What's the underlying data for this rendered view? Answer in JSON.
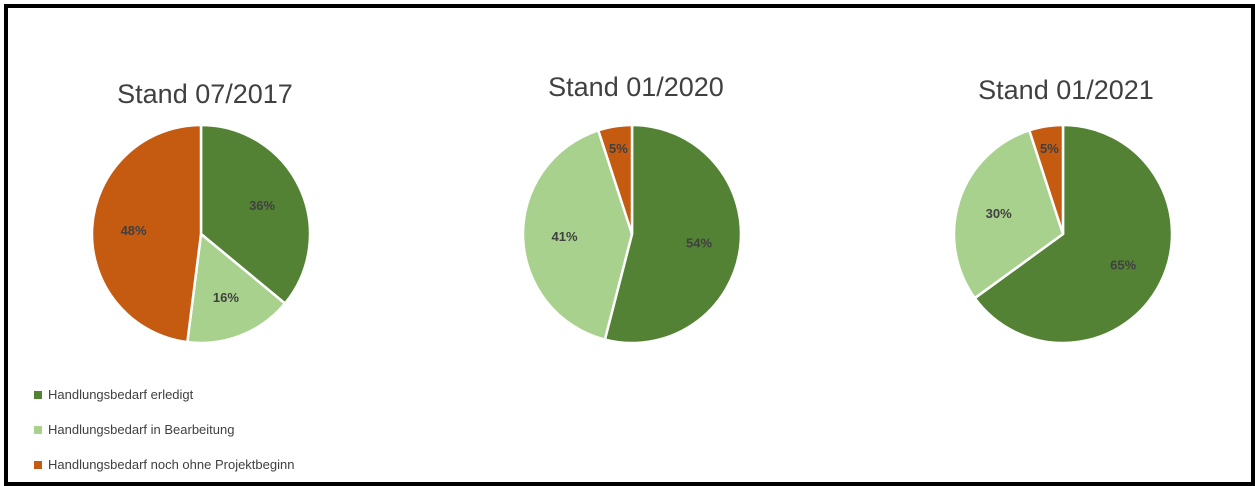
{
  "colors": {
    "erledigt": "#548235",
    "bearbeitung": "#A9D18E",
    "ohne": "#C55A11"
  },
  "legend": [
    {
      "label": "Handlungsbedarf erledigt",
      "color_key": "erledigt"
    },
    {
      "label": "Handlungsbedarf in Bearbeitung",
      "color_key": "bearbeitung"
    },
    {
      "label": "Handlungsbedarf noch ohne Projektbeginn",
      "color_key": "ohne"
    }
  ],
  "chart_data": [
    {
      "type": "pie",
      "title": "Stand 07/2017",
      "categories": [
        "Handlungsbedarf erledigt",
        "Handlungsbedarf in Bearbeitung",
        "Handlungsbedarf noch ohne Projektbeginn"
      ],
      "values": [
        36,
        16,
        48
      ],
      "labels": [
        "36%",
        "16%",
        "48%"
      ],
      "legend_position": "bottom-left"
    },
    {
      "type": "pie",
      "title": "Stand 01/2020",
      "categories": [
        "Handlungsbedarf erledigt",
        "Handlungsbedarf in Bearbeitung",
        "Handlungsbedarf noch ohne Projektbeginn"
      ],
      "values": [
        54,
        41,
        5
      ],
      "labels": [
        "54%",
        "41%",
        "5%"
      ],
      "legend_position": "bottom-left"
    },
    {
      "type": "pie",
      "title": "Stand 01/2021",
      "categories": [
        "Handlungsbedarf erledigt",
        "Handlungsbedarf in Bearbeitung",
        "Handlungsbedarf noch ohne Projektbeginn"
      ],
      "values": [
        65,
        30,
        5
      ],
      "labels": [
        "65%",
        "30%",
        "5%"
      ],
      "legend_position": "bottom-left"
    }
  ]
}
